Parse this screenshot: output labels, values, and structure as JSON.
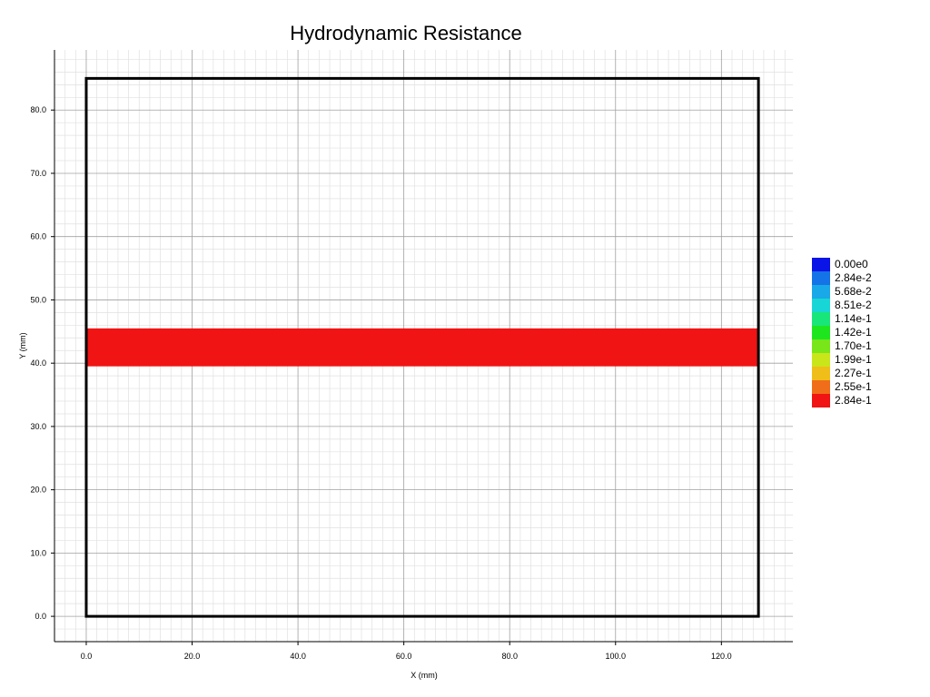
{
  "chart_data": {
    "type": "heatmap",
    "title": "Hydrodynamic Resistance",
    "xlabel": "X (mm)",
    "ylabel": "Y (mm)",
    "xlim": [
      -6.0,
      133.5
    ],
    "ylim": [
      -4.0,
      89.5
    ],
    "x_ticks": [
      0,
      20,
      40,
      60,
      80,
      100,
      120
    ],
    "y_ticks": [
      0,
      10,
      20,
      30,
      40,
      50,
      60,
      70,
      80
    ],
    "x_tick_labels": [
      "0.0",
      "20.0",
      "40.0",
      "60.0",
      "80.0",
      "100.0",
      "120.0"
    ],
    "y_tick_labels": [
      "0.0",
      "10.0",
      "20.0",
      "30.0",
      "40.0",
      "50.0",
      "60.0",
      "70.0",
      "80.0"
    ],
    "grid": true,
    "boundary": {
      "x": [
        0,
        127
      ],
      "y": [
        0,
        85
      ]
    },
    "regions": [
      {
        "x": [
          0,
          127
        ],
        "y": [
          39.5,
          45.5
        ],
        "value": 0.284
      }
    ],
    "legend_position": "right",
    "legend": [
      {
        "label": "0.00e0",
        "color": "#0a14e6"
      },
      {
        "label": "2.84e-2",
        "color": "#1473e6"
      },
      {
        "label": "5.68e-2",
        "color": "#19a8e8"
      },
      {
        "label": "8.51e-2",
        "color": "#19d6d6"
      },
      {
        "label": "1.14e-1",
        "color": "#19e678"
      },
      {
        "label": "1.42e-1",
        "color": "#1ee61e"
      },
      {
        "label": "1.70e-1",
        "color": "#78e619"
      },
      {
        "label": "1.99e-1",
        "color": "#c8e619"
      },
      {
        "label": "2.27e-1",
        "color": "#f0be19"
      },
      {
        "label": "2.55e-1",
        "color": "#f06e19"
      },
      {
        "label": "2.84e-1",
        "color": "#f01414"
      }
    ]
  }
}
